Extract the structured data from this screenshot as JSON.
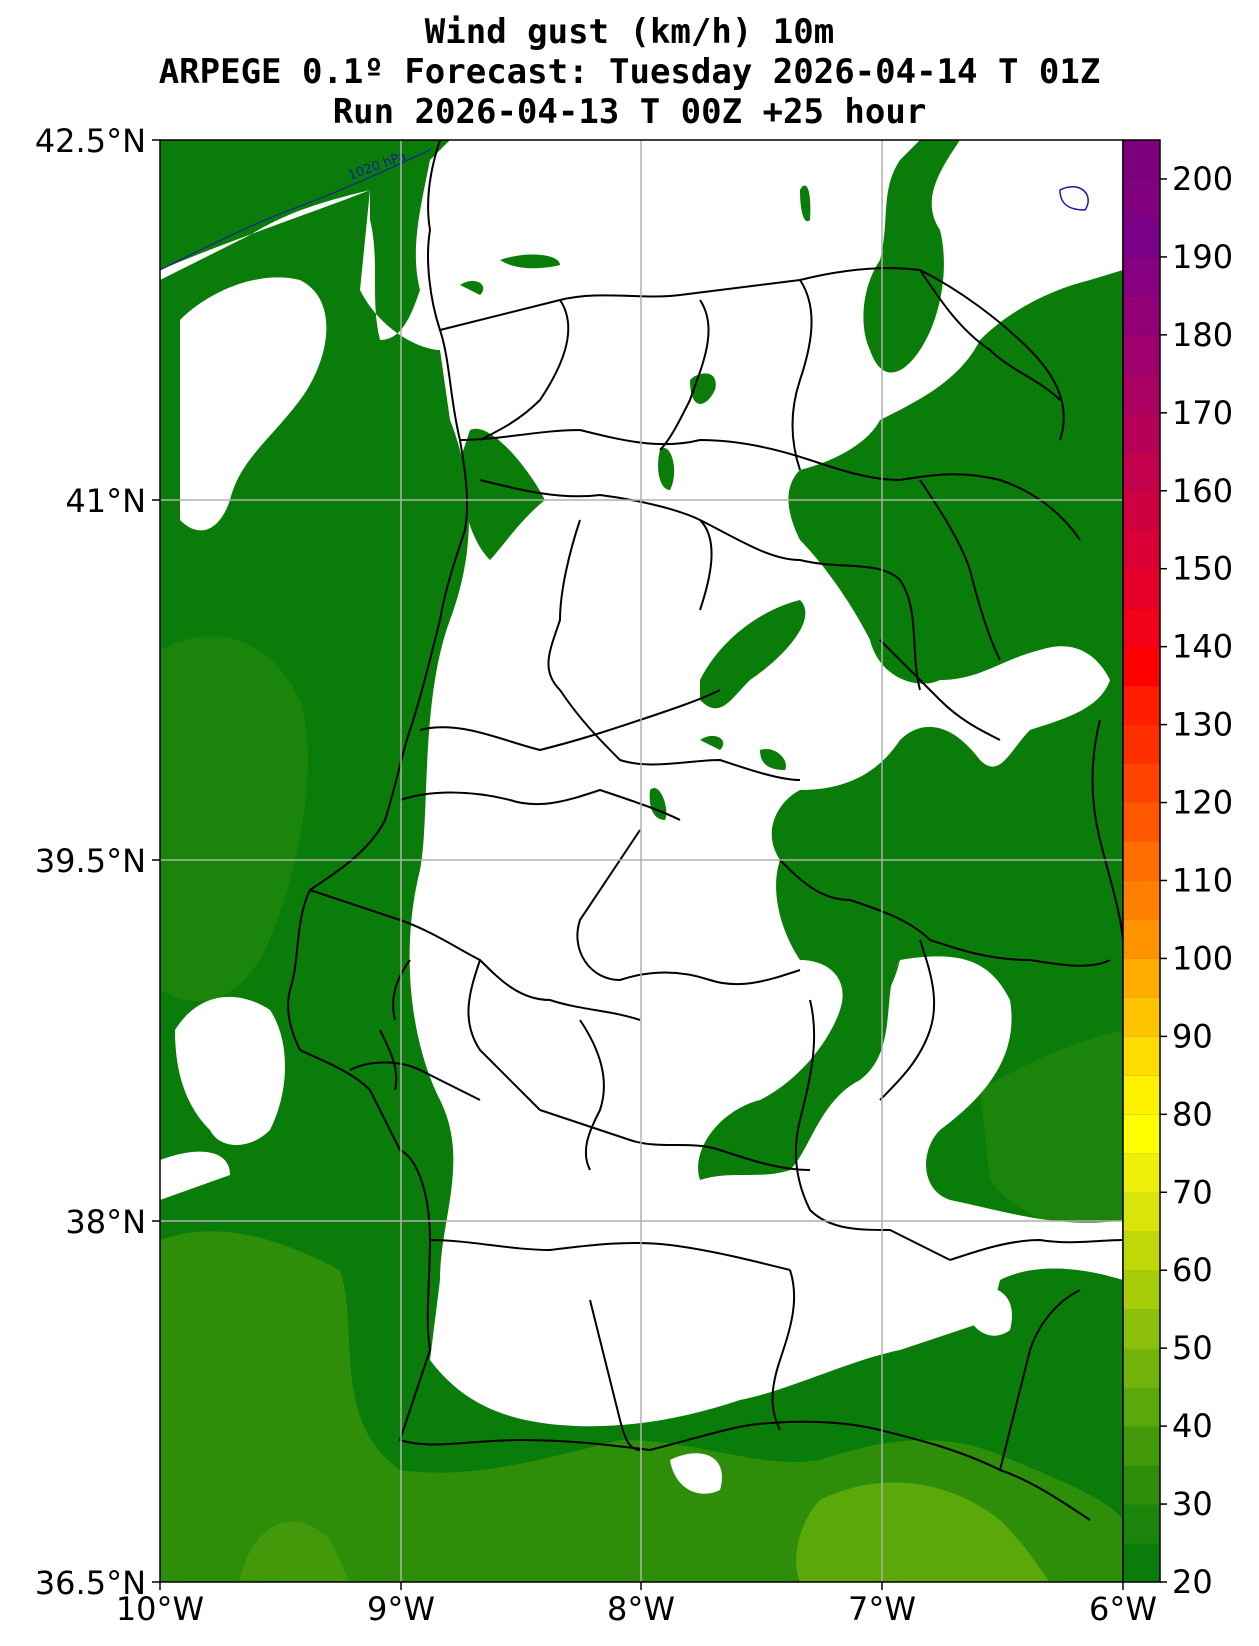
{
  "title": {
    "line1": "Wind gust (km/h) 10m",
    "line2": "ARPEGE 0.1º Forecast: Tuesday 2026-04-14 T 01Z",
    "line3": "Run 2026-04-13 T 00Z +25 hour"
  },
  "map": {
    "lat_labels": [
      "42.5°N",
      "41°N",
      "39.5°N",
      "38°N",
      "36.5°N"
    ],
    "lon_labels": [
      "10°W",
      "9°W",
      "8°W",
      "7°W",
      "6°W"
    ],
    "extent": {
      "lon": [
        -10,
        -6
      ],
      "lat": [
        36.5,
        42.5
      ]
    },
    "isobar_label": "1020 hPa",
    "colors": {
      "band_20_30": "#0a7c0a",
      "band_30_40": "#2e8e0a",
      "band_40_50": "#5aa80a",
      "land": "#ffffff",
      "borders": "#000000",
      "isobar": "#1a1aa0",
      "grid": "#b0b0b0"
    }
  },
  "colorbar": {
    "labels": [
      "20",
      "30",
      "40",
      "50",
      "60",
      "70",
      "80",
      "90",
      "100",
      "110",
      "120",
      "130",
      "140",
      "150",
      "160",
      "170",
      "180",
      "190",
      "200"
    ],
    "min": 20,
    "max": 205,
    "step": 5,
    "colors": [
      "#0a7c0a",
      "#1a850a",
      "#2e8e0a",
      "#42990a",
      "#5aa80a",
      "#72b40a",
      "#8cc00a",
      "#a6cc0a",
      "#c0d80a",
      "#d8e40a",
      "#eef00a",
      "#ffff00",
      "#fff200",
      "#ffdc00",
      "#ffc400",
      "#ffac00",
      "#ff9400",
      "#ff8000",
      "#ff6c00",
      "#ff5800",
      "#ff4400",
      "#ff3000",
      "#ff1c00",
      "#ff0000",
      "#f20018",
      "#e60028",
      "#da0035",
      "#ce0040",
      "#c2004c",
      "#b60058",
      "#aa0064",
      "#9e006e",
      "#920078",
      "#860080",
      "#7a0088",
      "#800080",
      "#7c007c"
    ]
  }
}
